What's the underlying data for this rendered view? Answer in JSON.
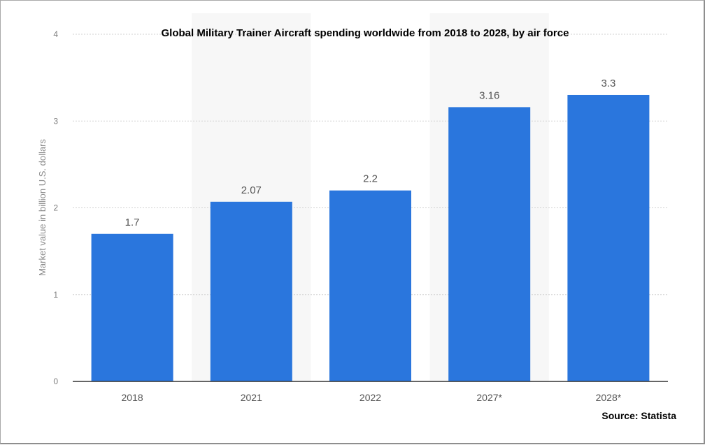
{
  "chart_data": {
    "type": "bar",
    "title": "Global Military Trainer Aircraft spending worldwide from 2018 to 2028, by air force",
    "xlabel": "",
    "ylabel": "Market value in billion U.S. dollars",
    "categories": [
      "2018",
      "2021",
      "2022",
      "2027*",
      "2028*"
    ],
    "values": [
      1.7,
      2.07,
      2.2,
      3.16,
      3.3
    ],
    "value_labels": [
      "1.7",
      "2.07",
      "2.2",
      "3.16",
      "3.3"
    ],
    "ylim": [
      0,
      4
    ],
    "yticks": [
      0,
      1,
      2,
      3,
      4
    ],
    "ytick_labels": [
      "0",
      "1",
      "2",
      "3",
      "4"
    ],
    "grid": true,
    "legend": "none",
    "source": "Source: Statista"
  },
  "colors": {
    "bar": "#2a76dd",
    "grid": "#d2d2d2",
    "axis": "#333333",
    "alt_band": "#f7f7f7"
  }
}
